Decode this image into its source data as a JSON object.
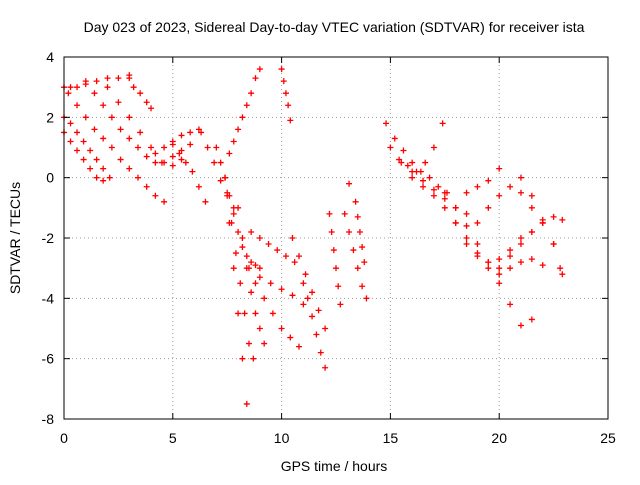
{
  "chart_data": {
    "type": "scatter",
    "title": "Day 023 of 2023, Sidereal Day-to-day VTEC variation (SDTVAR) for receiver ista",
    "xlabel": "GPS time / hours",
    "ylabel": "SDTVAR / TECUs",
    "xlim": [
      0,
      25
    ],
    "ylim": [
      -8,
      4
    ],
    "xticks": [
      0,
      5,
      10,
      15,
      20,
      25
    ],
    "yticks": [
      -8,
      -6,
      -4,
      -2,
      0,
      2,
      4
    ],
    "grid": true,
    "legend": "none",
    "marker": "plus",
    "color": "#ff0000",
    "series": [
      {
        "x": [
          0.0,
          0.3,
          0.6,
          0.9,
          1.2,
          1.5,
          1.8
        ],
        "y": [
          1.5,
          1.2,
          0.9,
          0.6,
          0.3,
          0.0,
          -0.1
        ]
      },
      {
        "x": [
          0.0,
          0.3,
          0.6,
          0.9,
          1.2,
          1.5,
          1.8,
          2.1
        ],
        "y": [
          2.0,
          1.8,
          1.5,
          1.2,
          0.9,
          0.6,
          0.3,
          0.0
        ]
      },
      {
        "x": [
          0.0,
          0.3,
          0.6,
          1.0,
          1.5,
          2.0,
          2.5,
          3.0
        ],
        "y": [
          3.0,
          3.0,
          3.0,
          3.1,
          3.2,
          3.3,
          3.3,
          3.4
        ]
      },
      {
        "x": [
          0.2,
          0.6,
          1.0,
          1.4,
          1.8,
          2.2,
          2.6,
          3.0,
          3.4,
          3.8,
          4.2,
          4.6
        ],
        "y": [
          2.8,
          2.4,
          2.0,
          1.6,
          1.3,
          1.0,
          0.6,
          0.3,
          0.0,
          -0.3,
          -0.6,
          -0.8
        ]
      },
      {
        "x": [
          1.0,
          1.4,
          1.8,
          2.2,
          2.6,
          3.0,
          3.4,
          3.8,
          4.2,
          4.6,
          5.0,
          5.4,
          5.8
        ],
        "y": [
          3.2,
          2.8,
          2.4,
          2.0,
          1.6,
          1.3,
          1.0,
          0.7,
          0.5,
          0.5,
          0.7,
          0.9,
          1.1
        ]
      },
      {
        "x": [
          2.0,
          2.5,
          3.0,
          3.5,
          4.0,
          4.5,
          5.0,
          5.4
        ],
        "y": [
          3.0,
          2.5,
          2.0,
          1.5,
          1.0,
          0.5,
          0.4,
          0.6
        ]
      },
      {
        "x": [
          3.0,
          3.2,
          3.5,
          3.8,
          4.0
        ],
        "y": [
          3.3,
          3.0,
          2.8,
          2.5,
          2.3
        ]
      },
      {
        "x": [
          4.2,
          4.6,
          5.0,
          5.4,
          5.8,
          6.2
        ],
        "y": [
          0.8,
          1.0,
          1.2,
          1.4,
          1.5,
          1.6
        ]
      },
      {
        "x": [
          5.0,
          5.3,
          5.6,
          5.9,
          6.2,
          6.5
        ],
        "y": [
          1.1,
          0.8,
          0.5,
          0.2,
          -0.3,
          -0.8
        ]
      },
      {
        "x": [
          6.3,
          6.6,
          6.9,
          7.2,
          7.5,
          7.8
        ],
        "y": [
          1.5,
          1.0,
          0.5,
          -0.1,
          -0.6,
          -1.0
        ]
      },
      {
        "x": [
          7.0,
          7.2,
          7.4,
          7.6,
          7.8,
          8.0,
          8.2,
          8.4,
          8.6,
          8.8,
          9.0
        ],
        "y": [
          1.0,
          0.5,
          0.0,
          -0.6,
          -1.2,
          -1.8,
          -2.3,
          -2.6,
          -2.8,
          -2.9,
          -3.0
        ]
      },
      {
        "x": [
          7.4,
          7.6,
          7.8,
          8.0,
          8.2,
          8.4
        ],
        "y": [
          0.0,
          -1.5,
          -3.0,
          -4.5,
          -6.0,
          -7.5
        ]
      },
      {
        "x": [
          7.5,
          7.7,
          7.9,
          8.1,
          8.3,
          8.5,
          8.7
        ],
        "y": [
          -0.5,
          -1.5,
          -2.5,
          -3.5,
          -4.5,
          -5.5,
          -6.0
        ]
      },
      {
        "x": [
          8.0,
          8.2,
          8.4,
          8.6,
          8.8,
          9.0,
          9.2
        ],
        "y": [
          -1.0,
          -2.0,
          -3.0,
          -3.8,
          -4.5,
          -5.0,
          -5.5
        ]
      },
      {
        "x": [
          7.6,
          7.8,
          8.0,
          8.2,
          8.4,
          8.6,
          8.8,
          9.0
        ],
        "y": [
          0.8,
          1.2,
          1.6,
          2.0,
          2.4,
          2.8,
          3.3,
          3.6
        ]
      },
      {
        "x": [
          8.6,
          9.0,
          9.4,
          9.8,
          10.2,
          10.6
        ],
        "y": [
          -1.8,
          -2.0,
          -2.2,
          -2.4,
          -2.6,
          -2.8
        ]
      },
      {
        "x": [
          8.5,
          9.0,
          9.5,
          10.0,
          10.5,
          11.0
        ],
        "y": [
          -3.0,
          -3.3,
          -3.5,
          -3.7,
          -3.9,
          -4.2
        ]
      },
      {
        "x": [
          8.8,
          9.2,
          9.6,
          10.0,
          10.4,
          10.8
        ],
        "y": [
          -3.5,
          -4.0,
          -4.5,
          -5.0,
          -5.3,
          -5.6
        ]
      },
      {
        "x": [
          10.0,
          10.1,
          10.2,
          10.3,
          10.4
        ],
        "y": [
          3.6,
          3.2,
          2.8,
          2.4,
          1.9
        ]
      },
      {
        "x": [
          10.5,
          10.8,
          11.1,
          11.4,
          11.7,
          12.0
        ],
        "y": [
          -2.0,
          -2.6,
          -3.2,
          -3.8,
          -4.4,
          -5.0
        ]
      },
      {
        "x": [
          11.0,
          11.2,
          11.4,
          11.6,
          11.8,
          12.0
        ],
        "y": [
          -3.5,
          -4.0,
          -4.6,
          -5.2,
          -5.8,
          -6.3
        ]
      },
      {
        "x": [
          12.2,
          12.3,
          12.4,
          12.5,
          12.6,
          12.7
        ],
        "y": [
          -1.2,
          -1.8,
          -2.4,
          -3.0,
          -3.6,
          -4.2
        ]
      },
      {
        "x": [
          12.9,
          13.1,
          13.3,
          13.5,
          13.7,
          13.9
        ],
        "y": [
          -1.2,
          -1.8,
          -2.4,
          -3.0,
          -3.6,
          -4.0
        ]
      },
      {
        "x": [
          13.4,
          13.5,
          13.6,
          13.7,
          13.8
        ],
        "y": [
          -0.8,
          -1.3,
          -1.8,
          -2.3,
          -2.8
        ]
      },
      {
        "x": [
          13.1
        ],
        "y": [
          -0.2
        ]
      },
      {
        "x": [
          14.8,
          15.2,
          15.6,
          16.0,
          16.4,
          16.8,
          17.2,
          17.6
        ],
        "y": [
          1.8,
          1.3,
          0.9,
          0.5,
          0.2,
          0.0,
          -0.3,
          -0.5
        ]
      },
      {
        "x": [
          15.0,
          15.4,
          15.8,
          16.2,
          16.6,
          17.0,
          17.4
        ],
        "y": [
          1.0,
          0.6,
          0.4,
          0.2,
          0.5,
          1.0,
          1.8
        ]
      },
      {
        "x": [
          15.5,
          16.0,
          16.5,
          17.0,
          17.5,
          18.0,
          18.5
        ],
        "y": [
          0.5,
          0.2,
          -0.1,
          -0.4,
          -0.7,
          -1.0,
          -1.2
        ]
      },
      {
        "x": [
          16.0,
          16.5,
          17.0,
          17.5,
          18.0,
          18.5,
          19.0,
          19.5,
          20.0,
          20.5,
          21.0,
          21.5
        ],
        "y": [
          0.0,
          -0.3,
          -0.6,
          -1.0,
          -1.5,
          -2.0,
          -2.5,
          -3.0,
          -3.5,
          -4.2,
          -4.9,
          -4.7
        ]
      },
      {
        "x": [
          17.5,
          18.0,
          18.5,
          19.0,
          19.5,
          20.0,
          20.5,
          21.0,
          21.5,
          22.0
        ],
        "y": [
          -0.5,
          -1.0,
          -1.6,
          -2.2,
          -2.8,
          -3.2,
          -3.0,
          -2.8,
          -2.7,
          -2.9
        ]
      },
      {
        "x": [
          18.0,
          18.5,
          19.0,
          19.5,
          20.0,
          20.5,
          21.0,
          21.5
        ],
        "y": [
          -1.5,
          -2.2,
          -2.6,
          -2.8,
          -2.7,
          -2.4,
          -2.0,
          -1.8
        ]
      },
      {
        "x": [
          18.5,
          19.0,
          19.5,
          20.0
        ],
        "y": [
          -0.5,
          -0.3,
          -0.1,
          0.3
        ]
      },
      {
        "x": [
          19.0,
          19.5,
          20.0,
          20.5,
          21.0,
          21.5,
          22.0,
          22.5,
          22.8
        ],
        "y": [
          -1.5,
          -1.0,
          -0.6,
          -0.3,
          -0.5,
          -1.0,
          -1.5,
          -2.2,
          -3.0
        ]
      },
      {
        "x": [
          20.0,
          20.5,
          21.0,
          21.5,
          22.0,
          22.5,
          22.9
        ],
        "y": [
          -3.0,
          -2.6,
          -2.2,
          -1.8,
          -1.5,
          -1.3,
          -1.4
        ]
      },
      {
        "x": [
          21.0,
          21.5,
          22.0,
          22.5,
          22.9
        ],
        "y": [
          0.0,
          -0.6,
          -1.4,
          -2.2,
          -3.2
        ]
      }
    ]
  }
}
